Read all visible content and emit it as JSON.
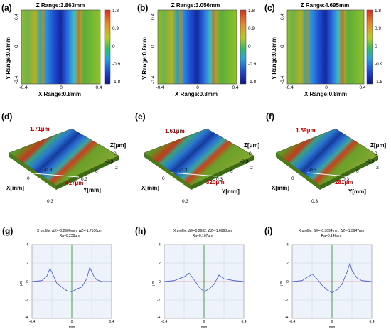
{
  "row1": {
    "panels": [
      {
        "label": "(a)",
        "z_range": "Z Range:3.863mm",
        "y_range": "Y Range:0.8mm",
        "x_range": "X Range:0.8mm"
      },
      {
        "label": "(b)",
        "z_range": "Z Range:3.056mm",
        "y_range": "Y Range:0.8mm",
        "x_range": "X Range:0.8mm"
      },
      {
        "label": "(c)",
        "z_range": "Z Range:4.695mm",
        "y_range": "Y Range:0.8mm",
        "x_range": "X Range:0.8mm"
      }
    ],
    "x_ticks": [
      "-0.4",
      "0",
      "0.4"
    ],
    "y_ticks": [
      "0.4",
      "0",
      "-0.4"
    ],
    "colorbar_ticks": [
      "1.8",
      "0.9",
      "0",
      "-0.9",
      "-1.8"
    ]
  },
  "row2": {
    "panels": [
      {
        "label": "(d)",
        "depth": "1.71μm",
        "width": "417μm"
      },
      {
        "label": "(e)",
        "depth": "1.61μm",
        "width": "320μm"
      },
      {
        "label": "(f)",
        "depth": "1.59μm",
        "width": "281μm"
      }
    ],
    "z_axis": "Z[μm]",
    "x_axis": "X[mm]",
    "y_axis": "Y[mm]",
    "z_ticks": [
      "0",
      "-2"
    ],
    "y_ticks": [
      "-0.3",
      "0",
      "0.3"
    ],
    "x_ticks": [
      "0.3",
      "0"
    ],
    "x_end_tick": "-0.3"
  },
  "row3": {
    "panels": [
      {
        "label": "(g)",
        "profile": "X profile: ΔX=-0.2906mm; ΔZ=-1.7106μm",
        "ra": "Ra=0.238μm"
      },
      {
        "label": "(h)",
        "profile": "X profile: ΔX=0.2632; ΔZ=-1.6098μm",
        "ra": "Ra=0.167μm"
      },
      {
        "label": "(i)",
        "profile": "X profile: ΔX=-0.3694mm; ΔZ=-1.5947μm",
        "ra": "Ra=0.146μm"
      }
    ],
    "x_ticks": [
      "-0.4",
      "0",
      "0.4"
    ],
    "y_ticks": [
      "4",
      "2",
      "0",
      "-2",
      "-4"
    ],
    "xlabel": "mm",
    "ylabel": "μm"
  },
  "colors": {
    "red": "#c00000",
    "line": "#3a55d6",
    "marker_green": "#2a9a2a",
    "marker_red": "#d03030"
  },
  "chart_data": [
    {
      "type": "line",
      "title": "",
      "xlabel": "mm",
      "ylabel": "μm",
      "xlim": [
        -0.4,
        0.4
      ],
      "ylim": [
        -4,
        4
      ],
      "series": [
        {
          "x": [
            -0.4,
            -0.3,
            -0.25,
            -0.22,
            -0.2,
            -0.15,
            -0.1,
            -0.05,
            0,
            0.05,
            0.1,
            0.15,
            0.18,
            0.2,
            0.22,
            0.25,
            0.3,
            0.4
          ],
          "y": [
            0,
            0.1,
            0.6,
            1.4,
            1.0,
            -0.2,
            -0.6,
            -1.0,
            -1.1,
            -0.8,
            -0.6,
            0.3,
            1.5,
            1.1,
            0.6,
            0.2,
            0,
            0
          ]
        }
      ]
    },
    {
      "type": "line",
      "title": "",
      "xlabel": "mm",
      "ylabel": "μm",
      "xlim": [
        -0.4,
        0.4
      ],
      "ylim": [
        -4,
        4
      ],
      "series": [
        {
          "x": [
            -0.4,
            -0.3,
            -0.2,
            -0.15,
            -0.1,
            -0.05,
            0,
            0.05,
            0.1,
            0.15,
            0.2,
            0.3,
            0.4
          ],
          "y": [
            0,
            0.1,
            0.5,
            0.9,
            0.2,
            -0.6,
            -1.1,
            -0.8,
            -0.3,
            0.7,
            0.3,
            0.1,
            0
          ]
        }
      ]
    },
    {
      "type": "line",
      "title": "",
      "xlabel": "mm",
      "ylabel": "μm",
      "xlim": [
        -0.4,
        0.4
      ],
      "ylim": [
        -4,
        4
      ],
      "series": [
        {
          "x": [
            -0.4,
            -0.3,
            -0.2,
            -0.15,
            -0.1,
            -0.05,
            0,
            0.05,
            0.1,
            0.15,
            0.18,
            0.2,
            0.25,
            0.3,
            0.4
          ],
          "y": [
            0,
            0.1,
            0.8,
            0.3,
            -0.4,
            -0.9,
            -1.2,
            -0.9,
            -0.3,
            1.0,
            2.0,
            1.2,
            0.4,
            0.1,
            0
          ]
        }
      ]
    }
  ]
}
